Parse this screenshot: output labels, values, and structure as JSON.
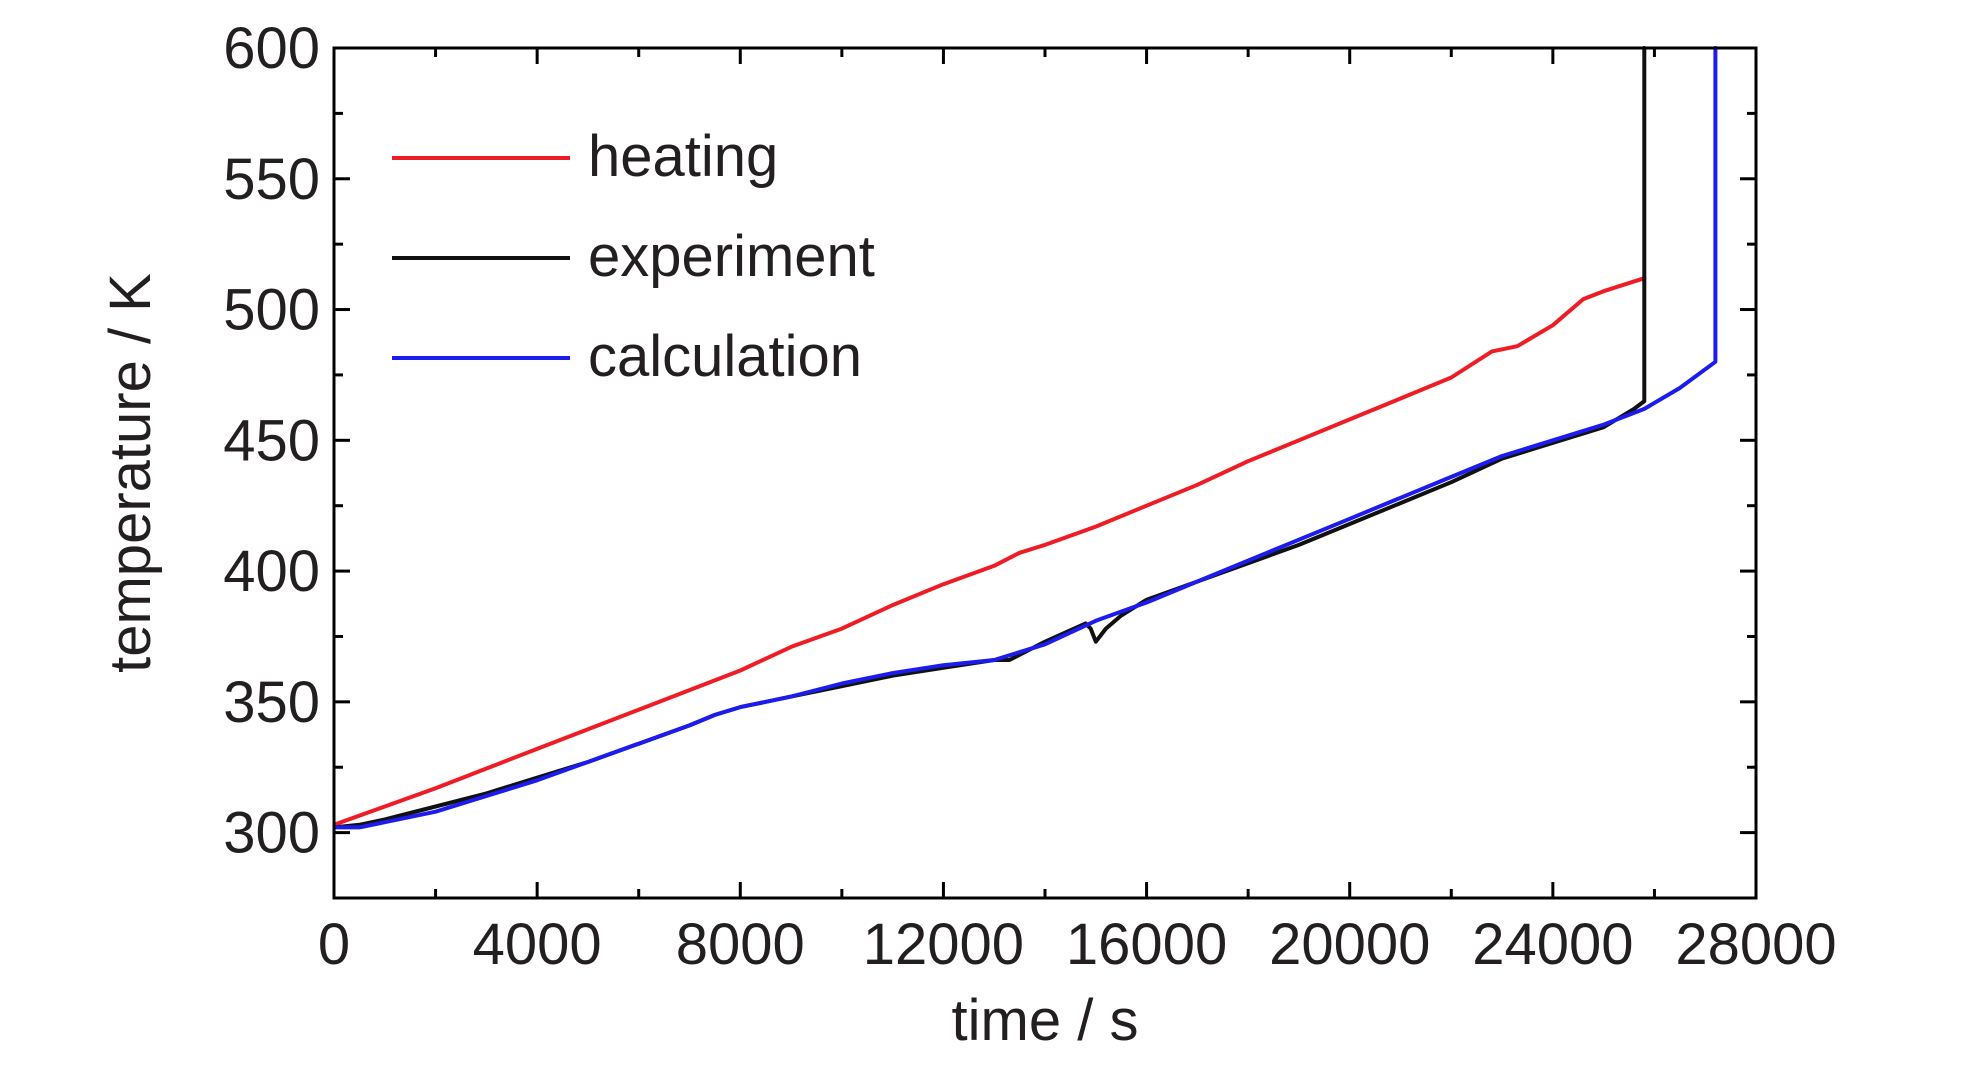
{
  "chart_data": {
    "type": "line",
    "xlabel": "time / s",
    "ylabel": "temperature / K",
    "xlim": [
      0,
      28000
    ],
    "ylim": [
      275,
      600
    ],
    "xticks": [
      "0",
      "4000",
      "8000",
      "12000",
      "16000",
      "20000",
      "24000",
      "28000"
    ],
    "yticks": [
      "300",
      "350",
      "400",
      "450",
      "500",
      "550",
      "600"
    ],
    "grid": false,
    "legend_position": "top-left",
    "series": [
      {
        "name": "heating",
        "color": "#ee1c25",
        "x": [
          0,
          2000,
          4000,
          6000,
          8000,
          9000,
          10000,
          11000,
          12000,
          13000,
          13500,
          14000,
          15000,
          16000,
          17000,
          18000,
          19000,
          20000,
          21000,
          22000,
          22800,
          23300,
          24000,
          24600,
          25000,
          25800
        ],
        "y": [
          303,
          317,
          332,
          347,
          362,
          371,
          378,
          387,
          395,
          402,
          407,
          410,
          417,
          425,
          433,
          442,
          450,
          458,
          466,
          474,
          484,
          486,
          494,
          504,
          507,
          512
        ]
      },
      {
        "name": "experiment",
        "color": "#111111",
        "x": [
          0,
          500,
          1000,
          2000,
          3000,
          4000,
          5000,
          6000,
          7000,
          7500,
          8000,
          9000,
          10000,
          11000,
          12000,
          13000,
          13300,
          14000,
          14800,
          14900,
          15000,
          15200,
          15500,
          16000,
          17000,
          18000,
          19000,
          20000,
          21000,
          22000,
          23000,
          24000,
          25000,
          25600,
          25800,
          25800
        ],
        "y": [
          302,
          303,
          305,
          310,
          315,
          321,
          327,
          334,
          341,
          345,
          348,
          352,
          356,
          360,
          363,
          366,
          366,
          373,
          380,
          378,
          373,
          378,
          383,
          389,
          396,
          403,
          410,
          418,
          426,
          434,
          443,
          449,
          455,
          462,
          465,
          600
        ]
      },
      {
        "name": "calculation",
        "color": "#1c1cee",
        "x": [
          0,
          500,
          1000,
          2000,
          3000,
          4000,
          5000,
          6000,
          7000,
          7500,
          8000,
          9000,
          10000,
          11000,
          12000,
          13000,
          14000,
          15000,
          16000,
          17000,
          18000,
          19000,
          20000,
          21000,
          22000,
          23000,
          24000,
          25000,
          25800,
          26500,
          27200,
          27200
        ],
        "y": [
          302,
          302,
          304,
          308,
          314,
          320,
          327,
          334,
          341,
          345,
          348,
          352,
          357,
          361,
          364,
          366,
          372,
          381,
          388,
          396,
          404,
          412,
          420,
          428,
          436,
          444,
          450,
          456,
          462,
          470,
          480,
          600
        ]
      }
    ]
  }
}
